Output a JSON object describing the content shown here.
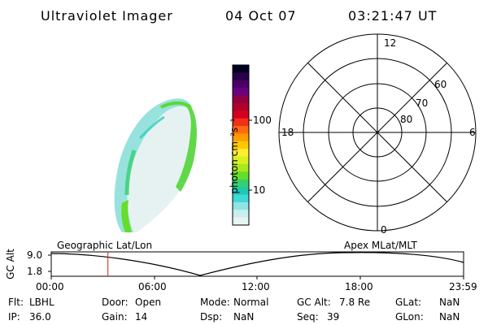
{
  "header": {
    "instrument": "Ultraviolet Imager",
    "date": "04 Oct 07",
    "time": "03:21:47 UT"
  },
  "colorbar": {
    "unit_label": "photon cm⁻²s⁻¹",
    "tick_labels": [
      "100",
      "10"
    ],
    "colors": [
      "#000022",
      "#2a004a",
      "#4a0064",
      "#6a0080",
      "#900040",
      "#b0002a",
      "#d40020",
      "#f2301a",
      "#ff6a10",
      "#ff9c00",
      "#ffc800",
      "#ffee30",
      "#d8f020",
      "#a8e820",
      "#66dd2a",
      "#36d070",
      "#20c8b0",
      "#40d8d8",
      "#90e4e4",
      "#c8eeee",
      "#e6f4f4"
    ]
  },
  "polar_plot": {
    "mlt_labels": {
      "top": "12",
      "bottom": "0",
      "left": "18",
      "right": "6"
    },
    "lat_labels": [
      "60",
      "70",
      "80"
    ]
  },
  "timeline": {
    "left_label": "Geographic Lat/Lon",
    "right_label": "Apex MLat/MLT",
    "axis_label": "GC Alt",
    "y_ticks": [
      "9.0",
      "1.8"
    ],
    "x_ticks": [
      "00:00",
      "06:00",
      "12:00",
      "18:00",
      "23:59"
    ],
    "current_time_fraction": 0.1374,
    "marker_color": "#d02020"
  },
  "info": {
    "flt_label": "Flt:",
    "flt_value": "LBHL",
    "ip_label": "IP:",
    "ip_value": "36.0",
    "door_label": "Door:",
    "door_value": "Open",
    "gain_label": "Gain:",
    "gain_value": "14",
    "mode_label": "Mode:",
    "mode_value": "Normal",
    "dsp_label": "Dsp:",
    "dsp_value": "NaN",
    "gcalt_label": "GC Alt:",
    "gcalt_value": "7.8 Re",
    "seq_label": "Seq:",
    "seq_value": "39",
    "glat_label": "GLat:",
    "glat_value": "NaN",
    "glon_label": "GLon:",
    "glon_value": "NaN"
  }
}
